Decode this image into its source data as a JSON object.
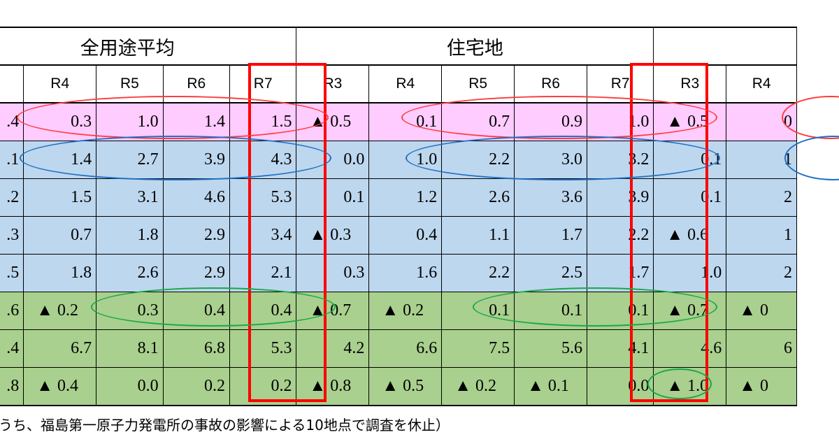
{
  "groups": [
    {
      "label": "全用途平均"
    },
    {
      "label": "住宅地"
    },
    {
      "label": ""
    }
  ],
  "year_headers": [
    "",
    "R4",
    "R5",
    "R6",
    "R7",
    "R3",
    "R4",
    "R5",
    "R6",
    "R7",
    "R3",
    "R4"
  ],
  "rows": [
    {
      "band": "pink",
      "cells": [
        ".4",
        "0.3",
        "1.0",
        "1.4",
        "1.5",
        "▲ 0.5",
        "0.1",
        "0.7",
        "0.9",
        "1.0",
        "▲ 0.5",
        "0"
      ]
    },
    {
      "band": "blue",
      "cells": [
        ".1",
        "1.4",
        "2.7",
        "3.9",
        "4.3",
        "0.0",
        "1.0",
        "2.2",
        "3.0",
        "3.2",
        "0.1",
        "1"
      ]
    },
    {
      "band": "blue",
      "cells": [
        ".2",
        "1.5",
        "3.1",
        "4.6",
        "5.3",
        "0.1",
        "1.2",
        "2.6",
        "3.6",
        "3.9",
        "0.1",
        "2"
      ]
    },
    {
      "band": "blue",
      "cells": [
        ".3",
        "0.7",
        "1.8",
        "2.9",
        "3.4",
        "▲ 0.3",
        "0.4",
        "1.1",
        "1.7",
        "2.2",
        "▲ 0.6",
        "1"
      ]
    },
    {
      "band": "blue",
      "cells": [
        ".5",
        "1.8",
        "2.6",
        "2.9",
        "2.1",
        "0.3",
        "1.6",
        "2.2",
        "2.5",
        "1.7",
        "1.0",
        "2"
      ]
    },
    {
      "band": "green",
      "cells": [
        ".6",
        "▲ 0.2",
        "0.3",
        "0.4",
        "0.4",
        "▲ 0.7",
        "▲ 0.2",
        "0.1",
        "0.1",
        "0.1",
        "▲ 0.7",
        "▲ 0"
      ]
    },
    {
      "band": "green",
      "cells": [
        ".4",
        "6.7",
        "8.1",
        "6.8",
        "5.3",
        "4.2",
        "6.6",
        "7.5",
        "5.6",
        "4.1",
        "4.6",
        "6"
      ]
    },
    {
      "band": "green",
      "cells": [
        ".8",
        "▲ 0.4",
        "0.0",
        "0.2",
        "0.2",
        "▲ 0.8",
        "▲ 0.5",
        "▲ 0.2",
        "▲ 0.1",
        "0.0",
        "▲ 1.0",
        "▲ 0"
      ]
    }
  ],
  "footnote": "うち、福島第一原子力発電所の事故の影響による10地点で調査を休止）",
  "colors": {
    "pink": "#ffccff",
    "blue": "#bdd7ee",
    "green": "#a9d08e",
    "highlight_box": "#ff0000",
    "ellipse_red": "#ff3b3b",
    "ellipse_blue": "#1f6fc4",
    "ellipse_green": "#19a84a"
  }
}
